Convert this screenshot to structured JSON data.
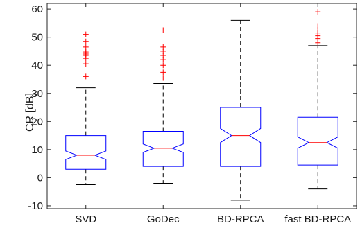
{
  "chart_data": {
    "type": "box",
    "notched": true,
    "ylabel": "CR [dB]",
    "xlabel": "",
    "title": "",
    "ylim": [
      -11,
      62
    ],
    "yticks": [
      -10,
      0,
      10,
      20,
      30,
      40,
      50,
      60
    ],
    "grid": false,
    "colors": {
      "box": "#0000ff",
      "median": "#ff0000",
      "whisker": "#000000",
      "outlier": "#ff0000"
    },
    "categories": [
      "SVD",
      "GoDec",
      "BD-RPCA",
      "fast BD-RPCA"
    ],
    "boxes": [
      {
        "name": "SVD",
        "whisker_low": -2.5,
        "q1": 3.0,
        "median": 8.0,
        "q3": 15.0,
        "whisker_high": 32.0,
        "notch_low": 6.5,
        "notch_high": 9.5,
        "outliers": [
          36.0,
          40.5,
          42.5,
          43.5,
          44.0,
          44.5,
          45.0,
          46.5,
          48.5,
          51.0
        ]
      },
      {
        "name": "GoDec",
        "whisker_low": -2.0,
        "q1": 4.0,
        "median": 10.5,
        "q3": 16.5,
        "whisker_high": 33.5,
        "notch_low": 9.0,
        "notch_high": 12.0,
        "outliers": [
          35.5,
          37.5,
          40.0,
          42.0,
          43.5,
          45.0,
          46.5,
          52.5
        ]
      },
      {
        "name": "BD-RPCA",
        "whisker_low": -8.0,
        "q1": 4.0,
        "median": 15.0,
        "q3": 25.0,
        "whisker_high": 56.0,
        "notch_low": 12.5,
        "notch_high": 17.5,
        "outliers": []
      },
      {
        "name": "fast BD-RPCA",
        "whisker_low": -4.0,
        "q1": 4.5,
        "median": 12.5,
        "q3": 21.5,
        "whisker_high": 47.0,
        "notch_low": 10.5,
        "notch_high": 14.5,
        "outliers": [
          48.0,
          49.5,
          50.5,
          51.5,
          52.5,
          54.0,
          59.0
        ]
      }
    ]
  }
}
